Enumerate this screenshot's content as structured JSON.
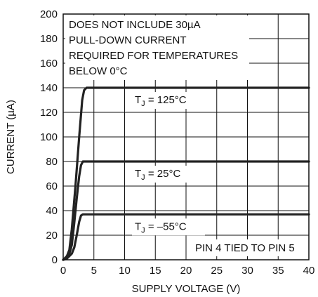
{
  "chart_data": {
    "type": "line",
    "xlabel": "SUPPLY VOLTAGE (V)",
    "ylabel": "CURRENT (µA)",
    "xlim": [
      0,
      40
    ],
    "ylim": [
      0,
      200
    ],
    "xticks": [
      "0",
      "5",
      "10",
      "15",
      "20",
      "25",
      "30",
      "35",
      "40"
    ],
    "yticks": [
      "0",
      "20",
      "40",
      "60",
      "80",
      "100",
      "120",
      "140",
      "160",
      "180",
      "200"
    ],
    "grid": true,
    "annotations": {
      "top_note": [
        "DOES NOT INCLUDE 30µA",
        "PULL-DOWN CURRENT",
        "REQUIRED FOR TEMPERATURES",
        "BELOW 0°C"
      ],
      "bottom_note": "PIN 4 TIED TO PIN 5"
    },
    "series": [
      {
        "name": "TJ = 125°C",
        "label_main": "T",
        "label_sub": "J",
        "label_rest": " = 125°C",
        "x": [
          0,
          0.6,
          1.0,
          1.4,
          2.0,
          2.6,
          3.1,
          3.4,
          3.8,
          40
        ],
        "y": [
          0,
          3,
          8,
          25,
          60,
          100,
          130,
          138,
          140,
          140
        ]
      },
      {
        "name": "TJ = 25°C",
        "label_main": "T",
        "label_sub": "J",
        "label_rest": " = 25°C",
        "x": [
          0,
          0.6,
          1.0,
          1.4,
          1.8,
          2.2,
          2.6,
          2.9,
          3.2,
          40
        ],
        "y": [
          0,
          2,
          5,
          12,
          30,
          50,
          68,
          77,
          80,
          80
        ]
      },
      {
        "name": "TJ = –55°C",
        "label_main": "T",
        "label_sub": "J",
        "label_rest": " = –55°C",
        "x": [
          0,
          0.6,
          1.0,
          1.4,
          1.8,
          2.2,
          2.6,
          2.9,
          3.2,
          40
        ],
        "y": [
          0,
          1,
          3,
          5,
          10,
          20,
          31,
          36,
          37,
          37
        ]
      }
    ]
  }
}
